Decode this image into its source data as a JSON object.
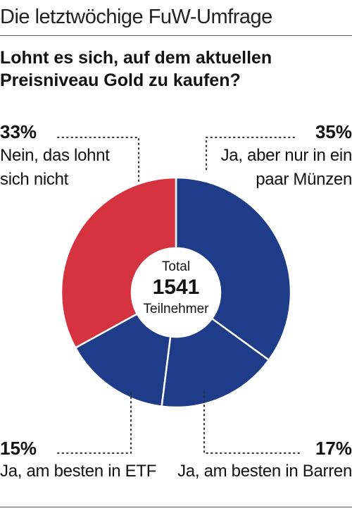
{
  "header": "Die letztwöchige FuW-Umfrage",
  "question_line1": "Lohnt es sich, auf dem aktuellen",
  "question_line2": "Preisniveau Gold zu kaufen?",
  "center": {
    "total_label": "Total",
    "total_value": "1541",
    "unit": "Teilnehmer"
  },
  "chart_data": {
    "type": "pie",
    "title": "Lohnt es sich, auf dem aktuellen Preisniveau Gold zu kaufen?",
    "total": 1541,
    "slices": [
      {
        "label": "Ja, aber nur in ein paar Münzen",
        "value": 35,
        "pct_label": "35%",
        "color": "#1f3c88"
      },
      {
        "label": "Ja, am besten in Barren",
        "value": 17,
        "pct_label": "17%",
        "color": "#1f3c88"
      },
      {
        "label": "Ja, am besten in ETF",
        "value": 15,
        "pct_label": "15%",
        "color": "#1f3c88"
      },
      {
        "label": "Nein, das lohnt sich nicht",
        "value": 33,
        "pct_label": "33%",
        "color": "#d63340"
      }
    ]
  },
  "labels": {
    "tl": {
      "pct": "33%",
      "line1": "Nein, das lohnt",
      "line2": "sich nicht"
    },
    "tr": {
      "pct": "35%",
      "line1": "Ja, aber nur in ein",
      "line2": "paar Münzen"
    },
    "bl": {
      "pct": "15%",
      "line1": "Ja, am besten in ETF"
    },
    "br": {
      "pct": "17%",
      "line1": "Ja, am besten in Barren"
    }
  }
}
